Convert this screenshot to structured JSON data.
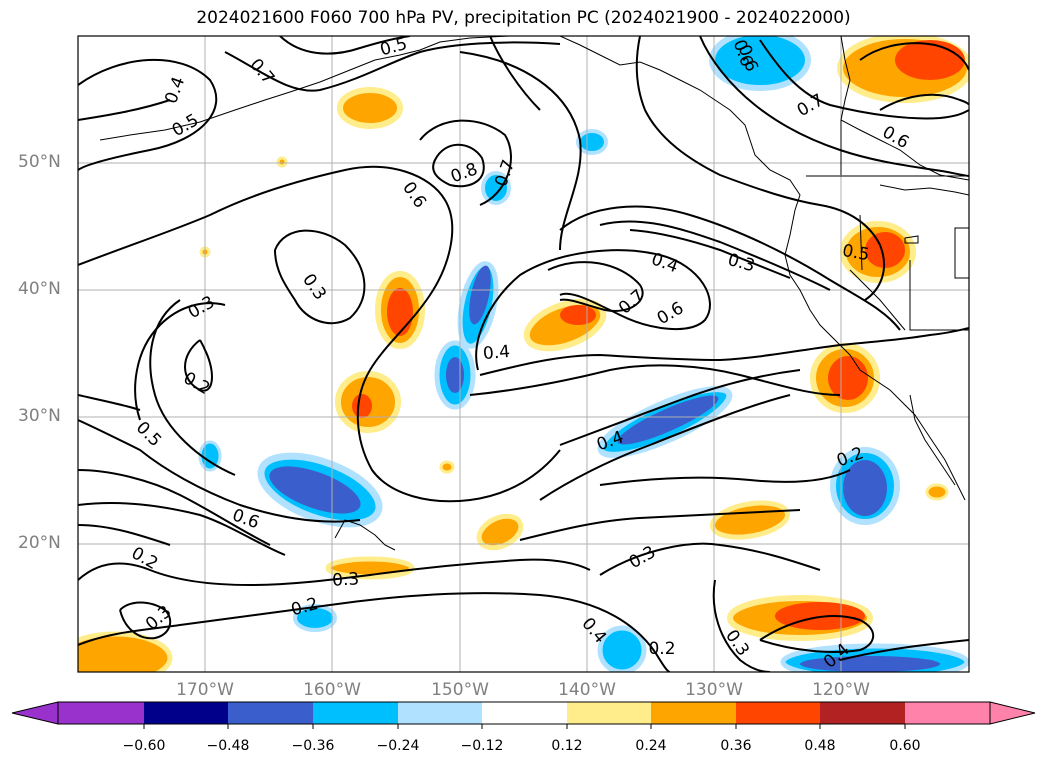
{
  "title": "2024021600 F060 700 hPa PV, precipitation PC (2024021900 - 2024022000)",
  "lat_labels": [
    "50°N",
    "40°N",
    "30°N",
    "20°N"
  ],
  "lon_labels": [
    "170°W",
    "160°W",
    "150°W",
    "140°W",
    "130°W",
    "120°W"
  ],
  "colorbar": {
    "ticks": [
      "−0.60",
      "−0.48",
      "−0.36",
      "−0.24",
      "−0.12",
      "0.12",
      "0.24",
      "0.36",
      "0.48",
      "0.60"
    ],
    "colors": [
      "#9932cc",
      "#00008b",
      "#3a5fcd",
      "#00bfff",
      "#b0e2ff",
      "#ffffff",
      "#ffec8b",
      "#ffa500",
      "#ff4500",
      "#b22222",
      "#ff82ab"
    ]
  },
  "contour_labels": [
    "0.5",
    "0.7",
    "0.4",
    "0.5",
    "0.6",
    "0.8",
    "0.7",
    "0.6",
    "0.3",
    "0.3",
    "0.2",
    "0.5",
    "0.6",
    "0.2",
    "0.3",
    "0.2",
    "0.3",
    "0.4",
    "0.4",
    "0.7",
    "0.6",
    "0.4",
    "0.3",
    "0.5",
    "0.6",
    "0.7",
    "0.6",
    "0.2",
    "0.3",
    "0.4",
    "0.2",
    "0.3",
    "0.4"
  ]
}
